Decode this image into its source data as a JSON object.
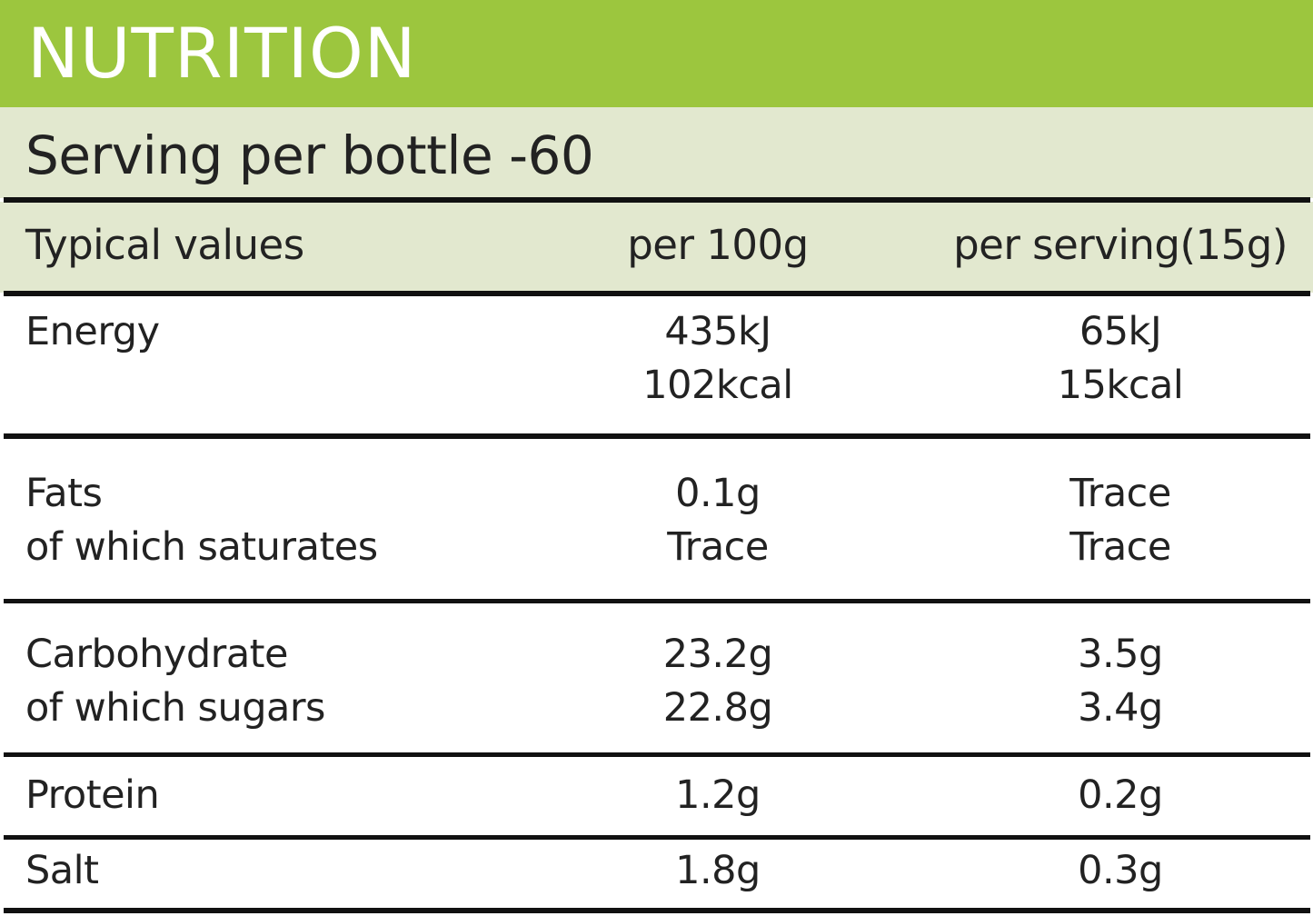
{
  "title": "NUTRITION",
  "subtitle": "Serving per bottle -60",
  "table": {
    "header": [
      "Typical values",
      "per 100g",
      "per serving(15g)"
    ],
    "rows": [
      [
        [
          "Energy"
        ],
        [
          "435kJ",
          "102kcal"
        ],
        [
          "65kJ",
          "15kcal"
        ]
      ],
      [
        [
          "Fats",
          "of which saturates"
        ],
        [
          "0.1g",
          "Trace"
        ],
        [
          "Trace",
          "Trace"
        ]
      ],
      [
        [
          "Carbohydrate",
          "of which sugars"
        ],
        [
          "23.2g",
          "22.8g"
        ],
        [
          "3.5g",
          "3.4g"
        ]
      ],
      [
        [
          "Protein"
        ],
        [
          "1.2g"
        ],
        [
          "0.2g"
        ]
      ],
      [
        [
          "Salt"
        ],
        [
          "1.8g"
        ],
        [
          "0.3g"
        ]
      ]
    ]
  }
}
